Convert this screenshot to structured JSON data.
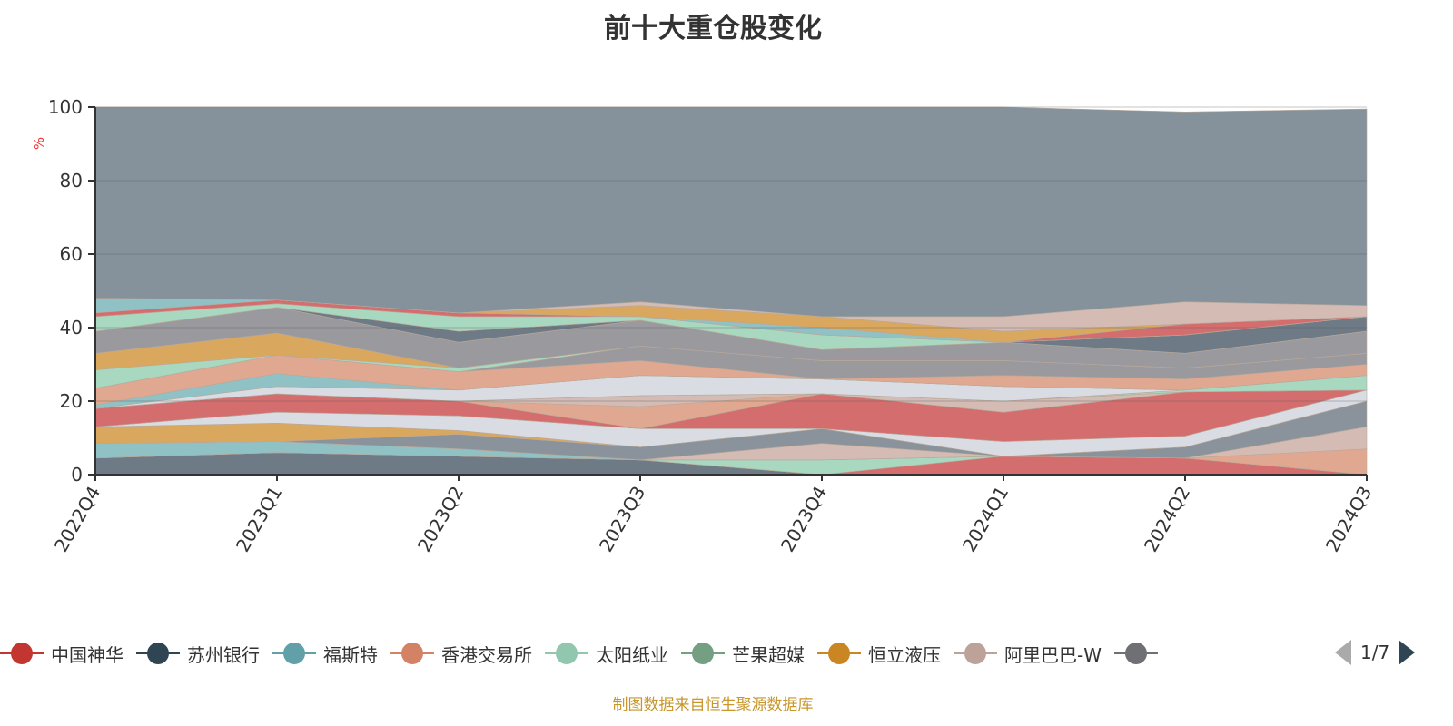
{
  "chart_data": {
    "type": "area",
    "stacked": true,
    "title": "前十大重仓股变化",
    "ylabel": "%",
    "ylim": [
      0,
      100
    ],
    "yticks": [
      "0",
      "20",
      "40",
      "60",
      "80",
      "100"
    ],
    "categories": [
      "2022Q4",
      "2023Q1",
      "2023Q2",
      "2023Q3",
      "2023Q4",
      "2024Q1",
      "2024Q2",
      "2024Q3"
    ],
    "series": [
      {
        "color": "#6e7b87",
        "values": [
          4.5,
          6,
          5,
          4,
          0,
          0,
          0,
          0
        ]
      },
      {
        "color": "#d46e6e",
        "values": [
          0,
          0,
          0,
          0,
          0,
          5,
          4.5,
          0
        ]
      },
      {
        "color": "#a8d8c0",
        "values": [
          0,
          0,
          0,
          0,
          4,
          0,
          0,
          0
        ]
      },
      {
        "color": "#8fc1c5",
        "values": [
          4,
          3,
          2,
          0,
          0,
          0,
          0,
          0
        ]
      },
      {
        "color": "#e0a890",
        "values": [
          0,
          0,
          0,
          0,
          0,
          0,
          0,
          7
        ]
      },
      {
        "color": "#d4bcb5",
        "values": [
          0,
          0,
          0,
          0,
          4.5,
          0,
          0,
          6
        ]
      },
      {
        "color": "#8a939b",
        "values": [
          0,
          0,
          4,
          3.5,
          4,
          0,
          3,
          7
        ]
      },
      {
        "color": "#d9a85e",
        "values": [
          4.5,
          5,
          1,
          0,
          0,
          0,
          0,
          0
        ]
      },
      {
        "color": "#d9dde3",
        "values": [
          0,
          3,
          4,
          5,
          0,
          4,
          3,
          3
        ]
      },
      {
        "color": "#d46e6e",
        "values": [
          5,
          5,
          4,
          0,
          9.5,
          8,
          12,
          0
        ]
      },
      {
        "color": "#e0a890",
        "values": [
          0,
          0,
          0,
          6,
          0,
          0,
          0,
          0
        ]
      },
      {
        "color": "#d4bcb5",
        "values": [
          0,
          0,
          0,
          3,
          0,
          3,
          0,
          0
        ]
      },
      {
        "color": "#a8d8c0",
        "values": [
          0,
          0,
          0,
          0,
          0,
          0,
          0.5,
          4
        ]
      },
      {
        "color": "#d9dde3",
        "values": [
          0,
          2,
          3,
          5.5,
          4,
          4,
          0,
          0
        ]
      },
      {
        "color": "#8fc1c5",
        "values": [
          1,
          3.5,
          0,
          0,
          0,
          0,
          0,
          0
        ]
      },
      {
        "color": "#e0a890",
        "values": [
          4.5,
          5,
          5,
          4,
          0,
          3,
          3,
          3
        ]
      },
      {
        "color": "#9a9a9e",
        "values": [
          0,
          0,
          0,
          4,
          5,
          4,
          3,
          3
        ]
      },
      {
        "color": "#a8d8c0",
        "values": [
          5,
          0,
          1,
          0,
          0,
          0,
          0,
          0
        ]
      },
      {
        "color": "#d9a85e",
        "values": [
          4.5,
          6,
          0,
          0,
          0,
          0,
          0,
          0
        ]
      },
      {
        "color": "#9a9a9e",
        "values": [
          6,
          7,
          7,
          7,
          3,
          5,
          4,
          6
        ]
      },
      {
        "color": "#6e7b87",
        "values": [
          0,
          0,
          3,
          0,
          0,
          0,
          5,
          4
        ]
      },
      {
        "color": "#a8d8c0",
        "values": [
          4,
          1,
          4,
          1,
          4,
          0,
          0,
          0
        ]
      },
      {
        "color": "#d46e6e",
        "values": [
          1,
          1,
          1,
          0,
          0,
          0,
          3,
          0
        ]
      },
      {
        "color": "#8fc1c5",
        "values": [
          4,
          0,
          0,
          0,
          2,
          0,
          0,
          0
        ]
      },
      {
        "color": "#d9a85e",
        "values": [
          0,
          0,
          0,
          3,
          3,
          3,
          0,
          0
        ]
      },
      {
        "color": "#d4bcb5",
        "values": [
          0,
          0,
          0,
          1,
          0,
          4,
          6,
          3
        ]
      },
      {
        "color": "#85929b",
        "values": [
          52,
          52.5,
          56,
          53,
          57,
          57,
          51.7,
          53.5
        ]
      }
    ],
    "legend": {
      "placement": "bottom",
      "items": [
        {
          "name": "中国神华",
          "color": "#c23531"
        },
        {
          "name": "苏州银行",
          "color": "#2f4554"
        },
        {
          "name": "福斯特",
          "color": "#61a0a8"
        },
        {
          "name": "香港交易所",
          "color": "#d48265"
        },
        {
          "name": "太阳纸业",
          "color": "#91c7ae"
        },
        {
          "name": "芒果超媒",
          "color": "#749f83"
        },
        {
          "name": "恒立液压",
          "color": "#ca8622"
        },
        {
          "name": "阿里巴巴-W",
          "color": "#bda29a"
        },
        {
          "name": "",
          "color": "#6e7074"
        }
      ],
      "page": "1/7"
    }
  },
  "source": "制图数据来自恒生聚源数据库"
}
